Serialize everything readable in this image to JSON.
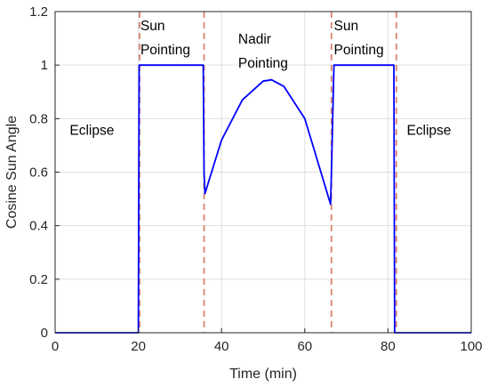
{
  "chart_data": {
    "type": "line",
    "xlabel": "Time (min)",
    "ylabel": "Cosine Sun Angle",
    "xlim": [
      0,
      100
    ],
    "ylim": [
      0,
      1.2
    ],
    "xticks": [
      "0",
      "20",
      "40",
      "60",
      "80",
      "100"
    ],
    "yticks": [
      "0",
      "0.2",
      "0.4",
      "0.6",
      "0.8",
      "1",
      "1.2"
    ],
    "grid": true,
    "series": [
      {
        "color": "#0000ff",
        "x": [
          0,
          20,
          20.2,
          21,
          35.6,
          35.8,
          36,
          40,
          45,
          50,
          52,
          55,
          60,
          66.2,
          66.4,
          67,
          81.4,
          81.6,
          82,
          100
        ],
        "y": [
          0,
          0,
          1,
          1,
          1,
          0.6,
          0.52,
          0.72,
          0.87,
          0.94,
          0.945,
          0.92,
          0.8,
          0.48,
          0.6,
          1,
          1,
          0,
          0,
          0
        ]
      }
    ],
    "event_lines": {
      "color": "#d9836b",
      "x": [
        20.3,
        35.8,
        66.4,
        82
      ]
    },
    "annotations": [
      {
        "lines": [
          "Eclipse"
        ],
        "x": 3.5,
        "y": 0.74
      },
      {
        "lines": [
          "Sun",
          "Pointing"
        ],
        "x": 20.5,
        "y": 1.13,
        "line2_y": 1.04
      },
      {
        "lines": [
          "Nadir",
          "Pointing"
        ],
        "x": 44,
        "y": 1.08,
        "line2_y": 0.99
      },
      {
        "lines": [
          "Sun",
          "Pointing"
        ],
        "x": 67,
        "y": 1.13,
        "line2_y": 1.04
      },
      {
        "lines": [
          "Eclipse"
        ],
        "x": 84.5,
        "y": 0.74
      }
    ]
  }
}
